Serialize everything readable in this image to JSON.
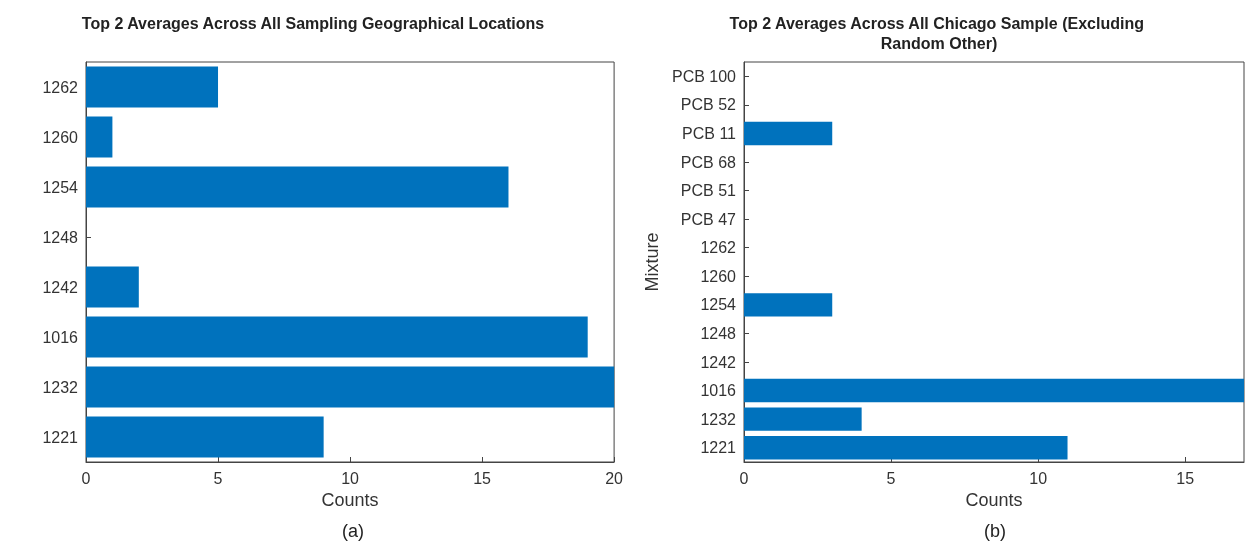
{
  "chart_data": [
    {
      "type": "bar",
      "orientation": "horizontal",
      "title": "Top 2 Averages Across All Sampling Geographical Locations",
      "xlabel": "Counts",
      "categories": [
        "1262",
        "1260",
        "1254",
        "1248",
        "1242",
        "1016",
        "1232",
        "1221"
      ],
      "values": [
        5,
        1,
        16,
        0,
        2,
        19,
        20,
        9
      ],
      "color": "#0072bd",
      "xlim": [
        0,
        20
      ],
      "xticks": [
        0,
        5,
        10,
        15,
        20
      ],
      "grid": false,
      "annotations": [
        "(a)"
      ]
    },
    {
      "type": "bar",
      "orientation": "horizontal",
      "title": "Top 2 Averages Across All Chicago Sample (Excluding Random Other)",
      "xlabel": "Counts",
      "ylabel": "Mixture",
      "categories": [
        "PCB 100",
        "PCB 52",
        "PCB 11",
        "PCB 68",
        "PCB 51",
        "PCB 47",
        "1262",
        "1260",
        "1254",
        "1248",
        "1242",
        "1016",
        "1232",
        "1221"
      ],
      "values": [
        0,
        0,
        3,
        0,
        0,
        0,
        0,
        0,
        3,
        0,
        0,
        17,
        4,
        11
      ],
      "color": "#0072bd",
      "xlim": [
        0,
        17
      ],
      "xticks": [
        0,
        5,
        10,
        15
      ],
      "grid": false,
      "annotations": [
        "(b)"
      ]
    }
  ]
}
